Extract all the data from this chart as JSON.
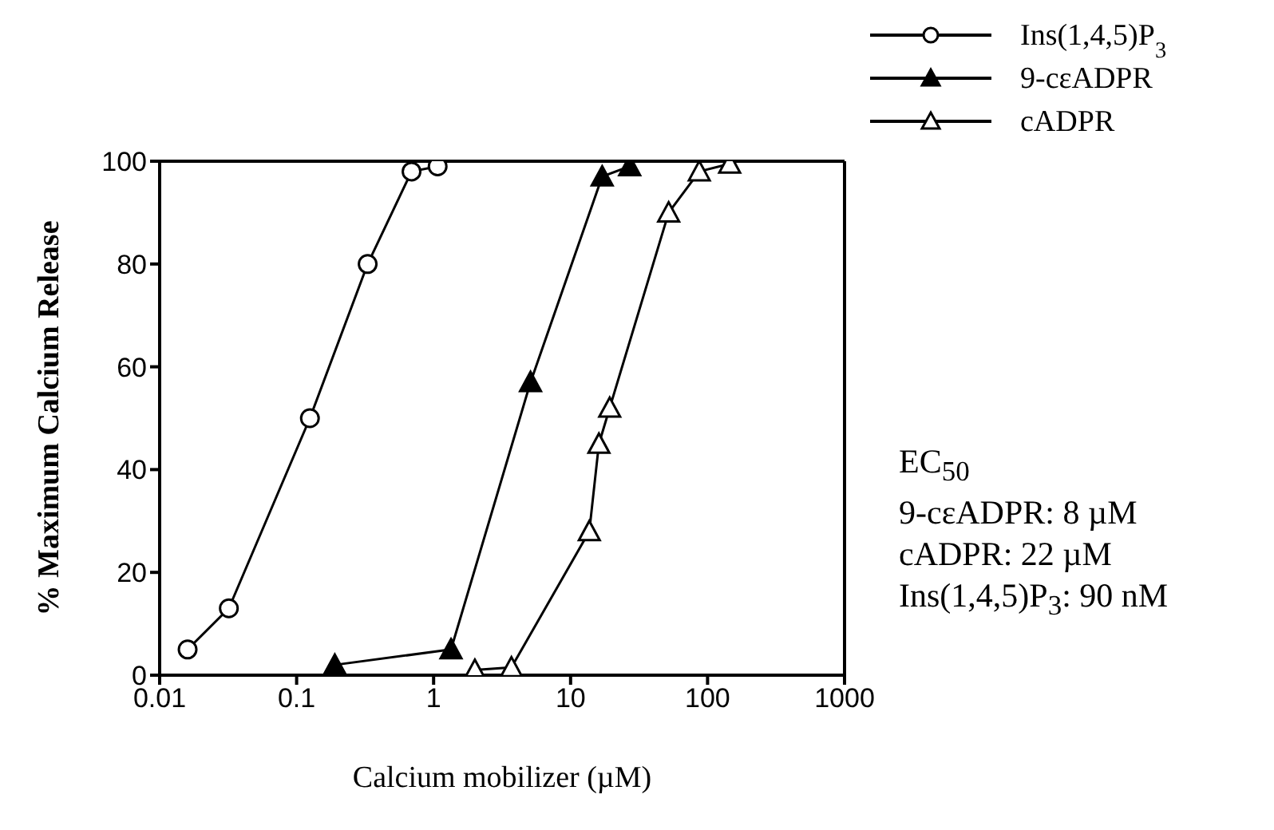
{
  "chart_data": {
    "type": "line",
    "xlabel": "Calcium mobilizer (µM)",
    "ylabel": "% Maximum Calcium Release",
    "log": "x",
    "xlim": [
      0.01,
      1000
    ],
    "xticks": [
      0.01,
      0.1,
      1,
      10,
      100,
      1000
    ],
    "ylim": [
      0,
      100
    ],
    "yticks": [
      0,
      20,
      40,
      60,
      80,
      100
    ],
    "grid": false,
    "legend": "top right",
    "line_style": "solid",
    "series": [
      {
        "name": "Ins(1,4,5)P$_{3}$",
        "color": "#000000",
        "colors": [
          "#ffffff",
          "#ffffff",
          "#ffffff",
          "#ffffff",
          "#ffffff",
          "#ffffff"
        ],
        "marker": "circle",
        "x": [
          0.016,
          0.032,
          0.125,
          0.33,
          0.69,
          1.07
        ],
        "values": [
          5,
          13,
          50,
          80,
          98,
          99
        ]
      },
      {
        "name": "9-cεADPR",
        "color": "#000000",
        "colors": [
          "#000000",
          "#000000",
          "#000000",
          "#000000",
          "#000000"
        ],
        "marker": "triangle",
        "x": [
          0.19,
          1.34,
          5.1,
          17,
          27
        ],
        "values": [
          2,
          5,
          57,
          97,
          99
        ]
      },
      {
        "name": "cADPR",
        "color": "#000000",
        "marker": "triangle",
        "colors": [
          "#ffffff",
          "#ffffff",
          "#ffffff",
          "#ffffff",
          "#ffffff",
          "#ffffff",
          "#ffffff",
          "#ffffff"
        ],
        "x": [
          2,
          3.7,
          13.7,
          16.1,
          19.3,
          52,
          87,
          145
        ],
        "values": [
          1,
          1.5,
          28,
          45,
          52,
          90,
          98,
          99.5
        ]
      }
    ],
    "annotations": [
      "EC$_{50}$",
      "9-cεADPR:  8 µM",
      "cADPR:  22 µM",
      "Ins(1,4,5)P$_{3}$:  90 nM"
    ]
  }
}
